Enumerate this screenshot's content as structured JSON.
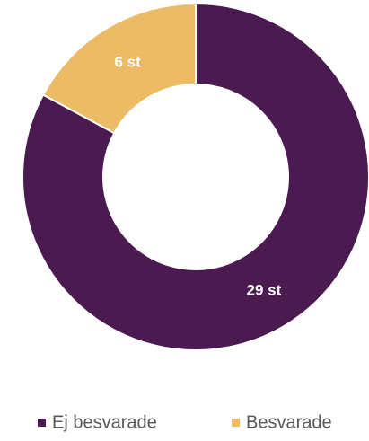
{
  "chart_data": {
    "type": "pie",
    "categories": [
      "Ej besvarade",
      "Besvarade"
    ],
    "values": [
      29,
      6
    ],
    "value_labels": [
      "29 st",
      "6 st"
    ],
    "colors": [
      "#4a1a50",
      "#ecbb65"
    ]
  }
}
